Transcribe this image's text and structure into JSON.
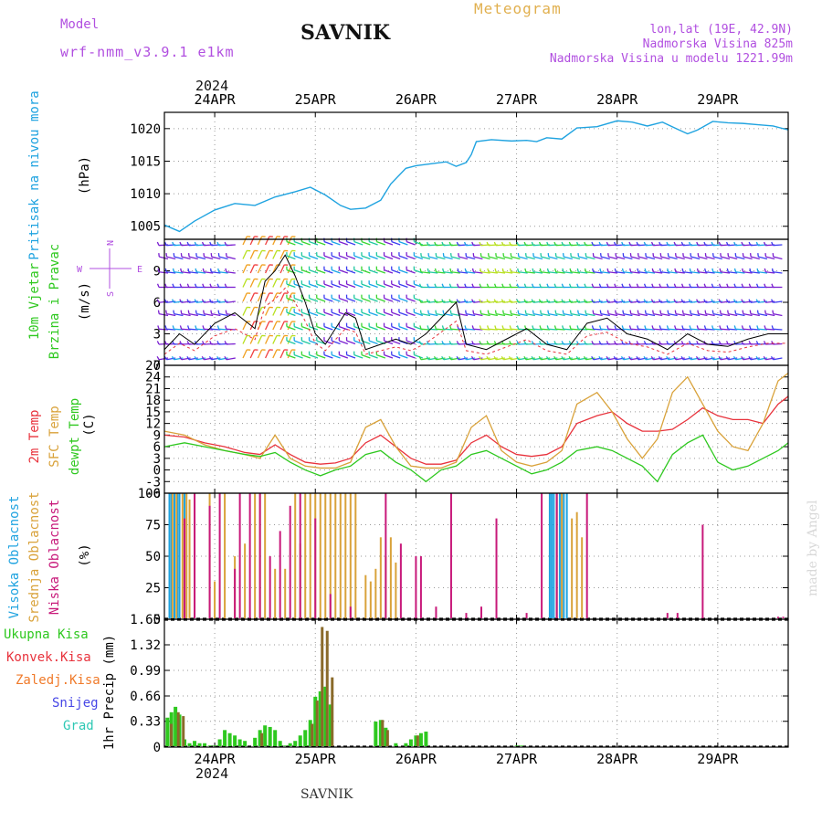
{
  "header": {
    "model_label": "Model",
    "model_name": "wrf-nmm_v3.9.1 e1km",
    "station": "SAVNIK",
    "meteogram": "Meteogram",
    "lonlat": "lon,lat (19E, 42.9N)",
    "altitude": "Nadmorska Visina 825m",
    "model_altitude": "Nadmorska Visina u modelu 1221.99m",
    "year_top": "2024",
    "year_bottom": "2024",
    "footer_station": "SAVNIK",
    "watermark": "made by Angel"
  },
  "colors": {
    "pressure": "#1fa3e0",
    "temp2m": "#e8323c",
    "sfc": "#d9a23a",
    "dewpt": "#2ec81f",
    "high": "#1fa3e0",
    "mid": "#d9a23a",
    "low": "#c8197a",
    "total": "#2ec81f",
    "convective": "#e8323c",
    "frozen": "#f07a2a",
    "snow": "#4646e6",
    "hail": "#2ec8b4",
    "wind_label": "#2ec81f",
    "wind_axis": "#b14fe0"
  },
  "chart_data": [
    {
      "type": "line",
      "panel": "pressure",
      "ylabel_parts": [
        "Pritisak na nivou mora",
        "(hPa)"
      ],
      "x_ticks": [
        "24APR",
        "25APR",
        "26APR",
        "27APR",
        "28APR",
        "29APR"
      ],
      "yticks": [
        "1005",
        "1010",
        "1015",
        "1020"
      ],
      "ylim": [
        1003,
        1022.5
      ],
      "xlim": [
        0,
        6.2
      ],
      "grid": true,
      "series": [
        {
          "name": "Pritisak na nivou mora",
          "x": [
            0,
            0.15,
            0.3,
            0.5,
            0.7,
            0.9,
            1.1,
            1.3,
            1.45,
            1.6,
            1.75,
            1.85,
            2.0,
            2.15,
            2.25,
            2.4,
            2.5,
            2.65,
            2.8,
            2.9,
            3.0,
            3.05,
            3.1,
            3.25,
            3.45,
            3.6,
            3.7,
            3.8,
            3.95,
            4.1,
            4.3,
            4.5,
            4.65,
            4.8,
            4.95,
            5.1,
            5.2,
            5.3,
            5.45,
            5.6,
            5.75,
            5.9,
            6.05,
            6.2
          ],
          "y": [
            1005.2,
            1004.2,
            1005.8,
            1007.5,
            1008.5,
            1008.2,
            1009.5,
            1010.3,
            1011,
            1009.8,
            1008.2,
            1007.6,
            1007.8,
            1009,
            1011.5,
            1013.9,
            1014.3,
            1014.6,
            1014.9,
            1014.2,
            1014.8,
            1016,
            1018,
            1018.3,
            1018.1,
            1018.2,
            1018.0,
            1018.6,
            1018.4,
            1020.1,
            1020.3,
            1021.2,
            1021.0,
            1020.4,
            1021.0,
            1019.9,
            1019.2,
            1019.8,
            1021.1,
            1020.9,
            1020.8,
            1020.6,
            1020.4,
            1019.8
          ]
        }
      ]
    },
    {
      "type": "line",
      "panel": "wind",
      "ylabel_parts": [
        "10m Vjetar",
        "Brzina i Pravac",
        "(m/s)"
      ],
      "compass": [
        "N",
        "E",
        "S",
        "W"
      ],
      "x_ticks": [
        "24APR",
        "25APR",
        "26APR",
        "27APR",
        "28APR",
        "29APR"
      ],
      "yticks": [
        "0",
        "3",
        "6",
        "9"
      ],
      "ylim": [
        0,
        12
      ],
      "xlim": [
        0,
        6.2
      ],
      "grid": true,
      "series": [
        {
          "name": "10m Vjetar",
          "x": [
            0,
            0.15,
            0.3,
            0.5,
            0.7,
            0.9,
            1.0,
            1.1,
            1.2,
            1.3,
            1.4,
            1.5,
            1.6,
            1.7,
            1.8,
            1.9,
            2.0,
            2.15,
            2.3,
            2.45,
            2.6,
            2.75,
            2.9,
            3.0,
            3.2,
            3.4,
            3.6,
            3.8,
            4.0,
            4.2,
            4.4,
            4.6,
            4.8,
            5.0,
            5.2,
            5.4,
            5.6,
            5.8,
            6.0,
            6.2
          ],
          "y": [
            1.5,
            3.0,
            2.0,
            4.0,
            5.0,
            3.5,
            8.0,
            9.0,
            10.5,
            8.5,
            6.0,
            3.0,
            2.0,
            3.5,
            5.0,
            4.5,
            1.5,
            2.0,
            2.5,
            2.0,
            3.0,
            4.5,
            6.0,
            2.0,
            1.5,
            2.5,
            3.5,
            2.0,
            1.5,
            4.0,
            4.5,
            3.0,
            2.5,
            1.5,
            3.0,
            2.0,
            1.8,
            2.5,
            3.0,
            3.0
          ]
        }
      ]
    },
    {
      "type": "line",
      "panel": "temperature",
      "ylabel_parts": [
        "2m Temp",
        "SFC Temp",
        "dewpt Temp",
        "(C)"
      ],
      "x_ticks": [
        "24APR",
        "25APR",
        "26APR",
        "27APR",
        "28APR",
        "29APR"
      ],
      "yticks": [
        "-6",
        "-3",
        "0",
        "3",
        "6",
        "9",
        "12",
        "15",
        "18",
        "21",
        "24",
        "27"
      ],
      "ylim": [
        -6,
        27
      ],
      "xlim": [
        0,
        6.2
      ],
      "grid": true,
      "series": [
        {
          "name": "2m Temp",
          "x": [
            0,
            0.2,
            0.4,
            0.6,
            0.8,
            0.95,
            1.1,
            1.25,
            1.4,
            1.55,
            1.7,
            1.85,
            2.0,
            2.15,
            2.3,
            2.45,
            2.6,
            2.75,
            2.9,
            3.05,
            3.2,
            3.35,
            3.5,
            3.65,
            3.8,
            3.95,
            4.1,
            4.3,
            4.45,
            4.6,
            4.75,
            4.9,
            5.05,
            5.2,
            5.35,
            5.5,
            5.65,
            5.8,
            5.95,
            6.1,
            6.2
          ],
          "y": [
            9,
            8.5,
            7,
            6,
            4.5,
            4,
            6.5,
            4,
            2,
            1.5,
            1.8,
            3,
            7,
            9,
            6,
            3,
            1.5,
            1.5,
            2.5,
            7,
            9,
            6,
            4,
            3.5,
            4,
            6,
            12,
            14,
            15,
            12,
            10,
            10,
            10.5,
            13,
            16,
            14,
            13,
            13,
            12,
            17,
            19
          ]
        },
        {
          "name": "SFC Temp",
          "x": [
            0,
            0.2,
            0.4,
            0.6,
            0.8,
            0.95,
            1.1,
            1.25,
            1.4,
            1.55,
            1.7,
            1.85,
            2.0,
            2.15,
            2.3,
            2.45,
            2.6,
            2.75,
            2.9,
            3.05,
            3.2,
            3.35,
            3.5,
            3.65,
            3.8,
            3.95,
            4.1,
            4.3,
            4.45,
            4.6,
            4.75,
            4.9,
            5.05,
            5.2,
            5.35,
            5.5,
            5.65,
            5.8,
            5.95,
            6.1,
            6.2
          ],
          "y": [
            10,
            9,
            6.5,
            5,
            4,
            3,
            9,
            3,
            1,
            0.5,
            0.5,
            2,
            11,
            13,
            6,
            1,
            0.5,
            0.5,
            2,
            11,
            14,
            5,
            2,
            1,
            2,
            5,
            17,
            20,
            15,
            8,
            3,
            8,
            20,
            24,
            17,
            10,
            6,
            5,
            12,
            23,
            25
          ]
        },
        {
          "name": "dewpt Temp",
          "x": [
            0,
            0.2,
            0.4,
            0.6,
            0.8,
            0.95,
            1.1,
            1.25,
            1.4,
            1.55,
            1.7,
            1.85,
            2.0,
            2.15,
            2.3,
            2.45,
            2.6,
            2.75,
            2.9,
            3.05,
            3.2,
            3.35,
            3.5,
            3.65,
            3.8,
            3.95,
            4.1,
            4.3,
            4.45,
            4.6,
            4.75,
            4.9,
            5.05,
            5.2,
            5.35,
            5.5,
            5.65,
            5.8,
            5.95,
            6.1,
            6.2
          ],
          "y": [
            6,
            7,
            6,
            5,
            4,
            3.5,
            4.5,
            2,
            0,
            -1.5,
            0,
            1,
            4,
            5,
            2,
            0,
            -3,
            0,
            1,
            4,
            5,
            3,
            1,
            -1,
            0,
            2,
            5,
            6,
            5,
            3,
            1,
            -3,
            4,
            7,
            9,
            2,
            0,
            1,
            3,
            5,
            7
          ]
        }
      ]
    },
    {
      "type": "bar",
      "panel": "cloud",
      "ylabel_parts": [
        "Visoka Oblacnost",
        "Srednja Oblacnost",
        "Niska Oblacnost",
        "(%)"
      ],
      "x_ticks": [
        "24APR",
        "25APR",
        "26APR",
        "27APR",
        "28APR",
        "29APR"
      ],
      "yticks": [
        "0",
        "25",
        "50",
        "75",
        "100"
      ],
      "ylim": [
        0,
        100
      ],
      "xlim": [
        0,
        6.2
      ],
      "grid": true,
      "series": [
        {
          "name": "Visoka Oblacnost",
          "x": [
            0.05,
            0.07,
            0.1,
            0.13,
            0.15,
            0.2,
            3.83,
            3.85,
            3.87,
            3.9,
            3.93,
            3.95,
            3.97,
            4.0
          ],
          "values": [
            100,
            100,
            100,
            100,
            100,
            100,
            100,
            100,
            100,
            100,
            100,
            100,
            100,
            100
          ]
        },
        {
          "name": "Srednja Oblacnost",
          "x": [
            0.08,
            0.12,
            0.18,
            0.22,
            0.25,
            0.3,
            0.45,
            0.5,
            0.6,
            0.7,
            0.8,
            0.9,
            0.95,
            1.0,
            1.1,
            1.2,
            1.3,
            1.35,
            1.4,
            1.45,
            1.5,
            1.55,
            1.6,
            1.65,
            1.7,
            1.75,
            1.8,
            1.85,
            1.9,
            2.0,
            2.05,
            2.1,
            2.15,
            2.2,
            2.25,
            2.3,
            3.9,
            3.95,
            4.05,
            4.1,
            4.15
          ],
          "values": [
            100,
            100,
            100,
            100,
            95,
            100,
            100,
            30,
            100,
            50,
            60,
            100,
            100,
            100,
            40,
            40,
            100,
            60,
            100,
            100,
            100,
            100,
            100,
            100,
            100,
            100,
            100,
            100,
            100,
            35,
            30,
            40,
            65,
            50,
            65,
            45,
            100,
            100,
            80,
            85,
            65
          ]
        },
        {
          "name": "Niska Oblacnost",
          "x": [
            0.2,
            0.3,
            0.45,
            0.55,
            0.7,
            0.75,
            0.85,
            0.95,
            1.05,
            1.15,
            1.25,
            1.35,
            1.5,
            1.65,
            1.85,
            2.2,
            2.35,
            2.5,
            2.55,
            2.7,
            2.85,
            3.0,
            3.15,
            3.3,
            3.6,
            3.75,
            3.9,
            4.2,
            5.0,
            5.1,
            5.35,
            6.1,
            6.15
          ],
          "values": [
            80,
            100,
            90,
            100,
            40,
            100,
            100,
            100,
            50,
            70,
            90,
            100,
            80,
            20,
            10,
            100,
            60,
            50,
            50,
            10,
            100,
            5,
            10,
            80,
            5,
            100,
            100,
            100,
            5,
            5,
            75,
            2,
            2
          ]
        }
      ]
    },
    {
      "type": "bar",
      "panel": "precipitation",
      "ylabel_parts": [
        "1hr Precip (mm)"
      ],
      "legend": [
        "Ukupna Kisa",
        "Konvek.Kisa",
        "Zaledj.Kisa",
        "Snijeg",
        "Grad"
      ],
      "x_ticks": [
        "24APR",
        "25APR",
        "26APR",
        "27APR",
        "28APR",
        "29APR"
      ],
      "yticks": [
        "0",
        "0.333",
        "0.66",
        "0.99",
        "1.32",
        "1.65"
      ],
      "ylim": [
        0,
        1.65
      ],
      "xlim": [
        0,
        6.2
      ],
      "grid": true,
      "series": [
        {
          "name": "Ukupna Kisa",
          "x": [
            0.03,
            0.07,
            0.11,
            0.15,
            0.2,
            0.25,
            0.3,
            0.35,
            0.4,
            0.45,
            0.5,
            0.55,
            0.6,
            0.65,
            0.7,
            0.75,
            0.8,
            0.9,
            0.95,
            1.0,
            1.05,
            1.1,
            1.15,
            1.2,
            1.25,
            1.3,
            1.35,
            1.4,
            1.45,
            1.5,
            1.55,
            1.6,
            1.65,
            2.1,
            2.15,
            2.2,
            2.3,
            2.4,
            2.45,
            2.5,
            2.55,
            2.6,
            3.5,
            3.55
          ],
          "values": [
            0.38,
            0.45,
            0.52,
            0.42,
            0.1,
            0.05,
            0.08,
            0.05,
            0.05,
            0.02,
            0.02,
            0.1,
            0.22,
            0.18,
            0.15,
            0.1,
            0.08,
            0.12,
            0.22,
            0.28,
            0.26,
            0.22,
            0.08,
            0.02,
            0.05,
            0.08,
            0.15,
            0.22,
            0.35,
            0.65,
            0.72,
            0.78,
            0.55,
            0.33,
            0.35,
            0.25,
            0.05,
            0.05,
            0.1,
            0.15,
            0.18,
            0.2,
            0.02,
            0.02
          ]
        },
        {
          "name": "Konvek.Kisa",
          "x": [
            0.05,
            0.12,
            0.17,
            0.95,
            1.45,
            1.5,
            1.55,
            1.6,
            1.65,
            2.15,
            2.2,
            2.5
          ],
          "values": [
            0.3,
            0.45,
            0.4,
            0.18,
            0.3,
            0.6,
            1.55,
            1.5,
            0.9,
            0.35,
            0.22,
            0.15
          ]
        }
      ]
    }
  ]
}
